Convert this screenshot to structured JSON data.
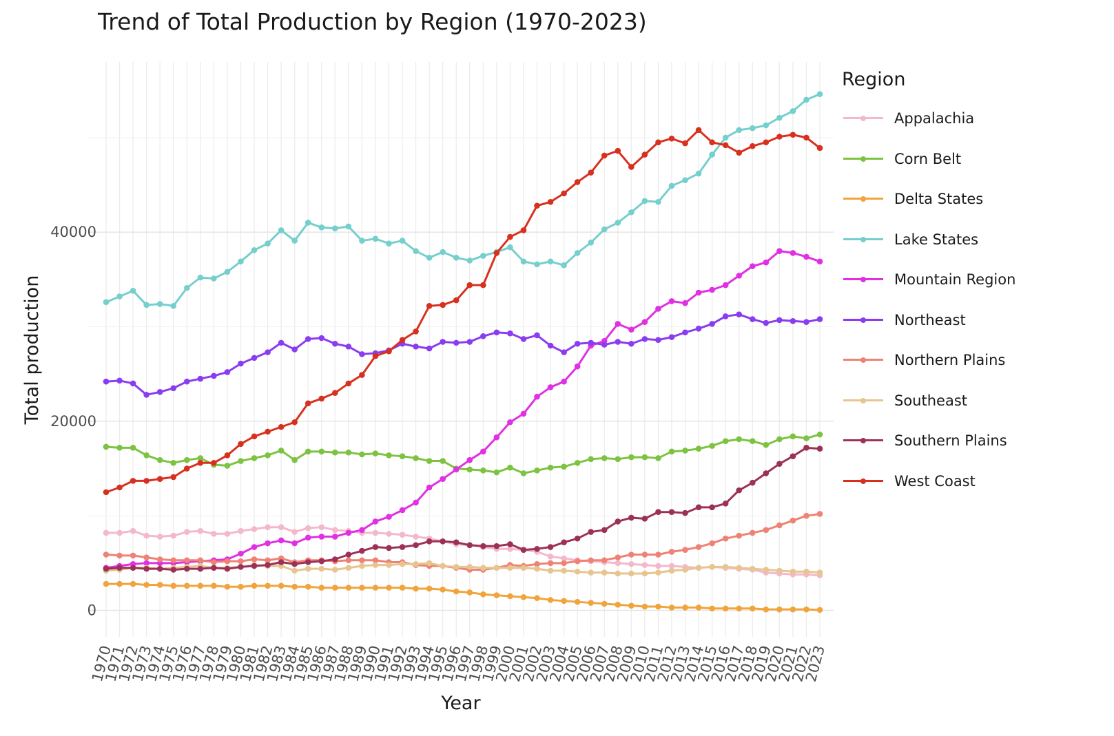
{
  "chart_data": {
    "type": "line",
    "title": "Trend of Total Production by Region (1970-2023)",
    "xlabel": "Year",
    "ylabel": "Total production",
    "legend_title": "Region",
    "legend_position": "right",
    "grid": true,
    "xlim": [
      1970,
      2023
    ],
    "ylim": [
      -2800,
      58000
    ],
    "yticks": [
      0,
      20000,
      40000
    ],
    "ytick_labels": [
      "0",
      "20000",
      "40000"
    ],
    "x": [
      1970,
      1971,
      1972,
      1973,
      1974,
      1975,
      1976,
      1977,
      1978,
      1979,
      1980,
      1981,
      1982,
      1983,
      1984,
      1985,
      1986,
      1987,
      1988,
      1989,
      1990,
      1991,
      1992,
      1993,
      1994,
      1995,
      1996,
      1997,
      1998,
      1999,
      2000,
      2001,
      2002,
      2003,
      2004,
      2005,
      2006,
      2007,
      2008,
      2009,
      2010,
      2011,
      2012,
      2013,
      2014,
      2015,
      2016,
      2017,
      2018,
      2019,
      2020,
      2021,
      2022,
      2023
    ],
    "x_labels": [
      "1970",
      "1971",
      "1972",
      "1973",
      "1974",
      "1975",
      "1976",
      "1977",
      "1978",
      "1979",
      "1980",
      "1981",
      "1982",
      "1983",
      "1984",
      "1985",
      "1986",
      "1987",
      "1988",
      "1989",
      "1990",
      "1991",
      "1992",
      "1993",
      "1994",
      "1995",
      "1996",
      "1997",
      "1998",
      "1999",
      "2000",
      "2001",
      "2002",
      "2003",
      "2004",
      "2005",
      "2006",
      "2007",
      "2008",
      "2009",
      "2010",
      "2011",
      "2012",
      "2013",
      "2014",
      "2015",
      "2016",
      "2017",
      "2018",
      "2019",
      "2020",
      "2021",
      "2022",
      "2023"
    ],
    "series": [
      {
        "name": "Appalachia",
        "color": "#f4b8cc",
        "values": [
          8200,
          8200,
          8400,
          7900,
          7800,
          7900,
          8300,
          8400,
          8100,
          8100,
          8400,
          8600,
          8800,
          8800,
          8300,
          8700,
          8800,
          8500,
          8400,
          8200,
          8200,
          8100,
          8000,
          7800,
          7600,
          7300,
          7000,
          6900,
          6700,
          6500,
          6500,
          6400,
          6200,
          5700,
          5500,
          5300,
          5200,
          5100,
          5000,
          4900,
          4800,
          4700,
          4700,
          4600,
          4500,
          4600,
          4500,
          4400,
          4300,
          4000,
          3900,
          3800,
          3800,
          3700
        ]
      },
      {
        "name": "Corn Belt",
        "color": "#7cc341",
        "values": [
          17300,
          17200,
          17200,
          16400,
          15900,
          15600,
          15900,
          16100,
          15400,
          15300,
          15800,
          16100,
          16400,
          16900,
          15900,
          16800,
          16800,
          16700,
          16700,
          16500,
          16600,
          16400,
          16300,
          16100,
          15800,
          15800,
          15000,
          14900,
          14800,
          14600,
          15100,
          14500,
          14800,
          15100,
          15200,
          15600,
          16000,
          16100,
          16000,
          16200,
          16200,
          16100,
          16800,
          16900,
          17100,
          17400,
          17900,
          18100,
          17900,
          17500,
          18100,
          18400,
          18200,
          18600
        ]
      },
      {
        "name": "Delta States",
        "color": "#f1a43c",
        "values": [
          2800,
          2800,
          2800,
          2700,
          2700,
          2600,
          2600,
          2600,
          2600,
          2500,
          2500,
          2600,
          2600,
          2600,
          2500,
          2500,
          2400,
          2400,
          2400,
          2400,
          2400,
          2400,
          2400,
          2300,
          2300,
          2200,
          2000,
          1900,
          1700,
          1600,
          1500,
          1400,
          1300,
          1100,
          1000,
          900,
          800,
          700,
          600,
          500,
          400,
          400,
          300,
          300,
          300,
          200,
          200,
          200,
          200,
          100,
          100,
          100,
          100,
          50
        ]
      },
      {
        "name": "Lake States",
        "color": "#75cfcc",
        "values": [
          32600,
          33200,
          33800,
          32300,
          32400,
          32200,
          34100,
          35200,
          35100,
          35800,
          36900,
          38100,
          38800,
          40200,
          39100,
          41000,
          40500,
          40400,
          40600,
          39100,
          39300,
          38800,
          39100,
          38000,
          37300,
          37900,
          37300,
          37000,
          37500,
          37900,
          38400,
          36900,
          36600,
          36900,
          36500,
          37800,
          38900,
          40300,
          41000,
          42100,
          43300,
          43200,
          44900,
          45500,
          46200,
          48200,
          50000,
          50800,
          51000,
          51300,
          52100,
          52800,
          54000,
          54600
        ]
      },
      {
        "name": "Mountain Region",
        "color": "#e030e3",
        "values": [
          4500,
          4700,
          4900,
          5000,
          5000,
          5000,
          5100,
          5200,
          5300,
          5400,
          6000,
          6700,
          7100,
          7400,
          7100,
          7700,
          7800,
          7800,
          8200,
          8500,
          9400,
          9900,
          10600,
          11400,
          13000,
          13900,
          14900,
          15900,
          16800,
          18300,
          19900,
          20800,
          22600,
          23600,
          24200,
          25800,
          28000,
          28500,
          30300,
          29700,
          30500,
          31900,
          32700,
          32500,
          33600,
          33900,
          34400,
          35400,
          36400,
          36800,
          38000,
          37800,
          37400,
          36900
        ]
      },
      {
        "name": "Northeast",
        "color": "#8a3cf0",
        "values": [
          24200,
          24300,
          24000,
          22800,
          23100,
          23500,
          24200,
          24500,
          24800,
          25200,
          26100,
          26700,
          27300,
          28300,
          27600,
          28700,
          28800,
          28200,
          27900,
          27100,
          27200,
          27500,
          28200,
          27900,
          27700,
          28400,
          28300,
          28400,
          29000,
          29400,
          29300,
          28700,
          29100,
          28000,
          27300,
          28200,
          28300,
          28100,
          28400,
          28200,
          28700,
          28600,
          28900,
          29400,
          29800,
          30300,
          31100,
          31300,
          30800,
          30400,
          30700,
          30600,
          30500,
          30800
        ]
      },
      {
        "name": "Northern Plains",
        "color": "#ee8275",
        "values": [
          5900,
          5800,
          5800,
          5600,
          5400,
          5300,
          5300,
          5300,
          5100,
          5200,
          5200,
          5400,
          5300,
          5500,
          5100,
          5300,
          5300,
          5200,
          5300,
          5300,
          5300,
          5100,
          5100,
          4800,
          4700,
          4700,
          4500,
          4300,
          4300,
          4500,
          4800,
          4700,
          4900,
          5000,
          5000,
          5200,
          5300,
          5300,
          5600,
          5900,
          5900,
          5900,
          6200,
          6400,
          6700,
          7100,
          7600,
          7900,
          8200,
          8500,
          9000,
          9500,
          10000,
          10200
        ]
      },
      {
        "name": "Southeast",
        "color": "#e6c590",
        "values": [
          4200,
          4300,
          4500,
          4500,
          4400,
          4500,
          4600,
          4700,
          4500,
          4500,
          4600,
          4800,
          4700,
          4700,
          4200,
          4400,
          4400,
          4300,
          4500,
          4700,
          4800,
          4800,
          4900,
          4900,
          5000,
          4700,
          4600,
          4600,
          4500,
          4500,
          4500,
          4500,
          4400,
          4200,
          4200,
          4100,
          4000,
          4000,
          3900,
          3900,
          3900,
          4000,
          4200,
          4300,
          4500,
          4600,
          4600,
          4500,
          4400,
          4300,
          4200,
          4100,
          4100,
          4000
        ]
      },
      {
        "name": "Southern Plains",
        "color": "#9c3157",
        "values": [
          4400,
          4500,
          4500,
          4400,
          4400,
          4300,
          4400,
          4400,
          4500,
          4400,
          4600,
          4700,
          4800,
          5100,
          4900,
          5100,
          5200,
          5400,
          5900,
          6300,
          6700,
          6600,
          6700,
          6900,
          7300,
          7300,
          7200,
          6900,
          6800,
          6800,
          7000,
          6400,
          6500,
          6700,
          7200,
          7600,
          8300,
          8500,
          9400,
          9800,
          9700,
          10400,
          10400,
          10300,
          10900,
          10900,
          11300,
          12700,
          13500,
          14500,
          15500,
          16300,
          17200,
          17100
        ]
      },
      {
        "name": "West Coast",
        "color": "#d8301f",
        "values": [
          12500,
          13000,
          13700,
          13700,
          13900,
          14100,
          15000,
          15600,
          15600,
          16400,
          17600,
          18400,
          18900,
          19400,
          19900,
          21900,
          22400,
          23000,
          24000,
          24900,
          26900,
          27400,
          28600,
          29500,
          32200,
          32300,
          32800,
          34400,
          34400,
          37800,
          39500,
          40200,
          42800,
          43200,
          44100,
          45300,
          46300,
          48100,
          48600,
          46900,
          48200,
          49500,
          49900,
          49400,
          50800,
          49500,
          49200,
          48400,
          49100,
          49500,
          50100,
          50300,
          50000,
          48900
        ]
      }
    ]
  }
}
